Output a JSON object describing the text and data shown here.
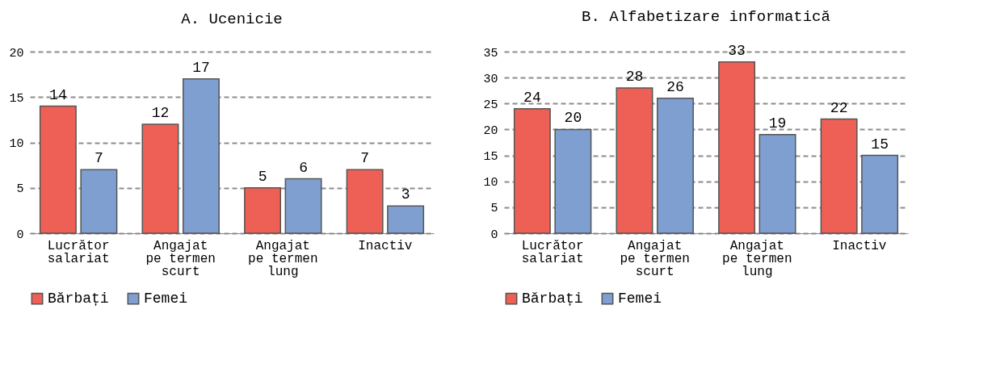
{
  "chart_data": [
    {
      "type": "bar",
      "title": "A. Ucenicie",
      "categories": [
        "Lucrător\nsalariat",
        "Angajat\npe termen\nscurt",
        "Angajat\npe termen\nlung",
        "Inactiv"
      ],
      "series": [
        {
          "name": "Bărbați",
          "color": "#ee6055",
          "values": [
            14,
            12,
            5,
            7
          ]
        },
        {
          "name": "Femei",
          "color": "#7f9fd0",
          "values": [
            7,
            17,
            6,
            3
          ]
        }
      ],
      "ylim": [
        0,
        20
      ],
      "yticks": [
        0,
        5,
        10,
        15,
        20
      ],
      "grid": "y",
      "legend": "bottom",
      "data_labels": true
    },
    {
      "type": "bar",
      "title": "B. Alfabetizare informatică",
      "categories": [
        "Lucrător\nsalariat",
        "Angajat\npe termen\nscurt",
        "Angajat\npe termen\nlung",
        "Inactiv"
      ],
      "series": [
        {
          "name": "Bărbați",
          "color": "#ee6055",
          "values": [
            24,
            28,
            33,
            22
          ]
        },
        {
          "name": "Femei",
          "color": "#7f9fd0",
          "values": [
            20,
            26,
            19,
            15
          ]
        }
      ],
      "ylim": [
        0,
        35
      ],
      "yticks": [
        0,
        5,
        10,
        15,
        20,
        25,
        30,
        35
      ],
      "grid": "y",
      "legend": "bottom",
      "data_labels": true
    }
  ]
}
